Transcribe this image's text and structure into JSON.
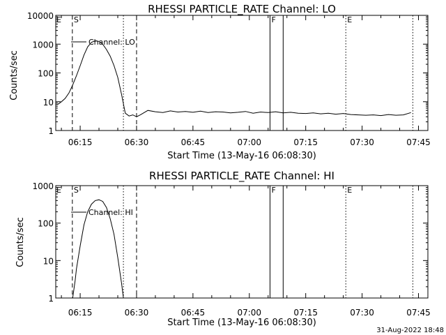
{
  "chart_data": [
    {
      "type": "line",
      "title": "RHESSI PARTICLE_RATE Channel: LO",
      "xlabel": "Start Time (13-May-16 06:08:30)",
      "ylabel": "Counts/sec",
      "y_scale": "log",
      "ylim": [
        1,
        10000
      ],
      "y_ticks": [
        "1",
        "10",
        "100",
        "1000",
        "10000"
      ],
      "xlim": [
        "06:08:30",
        "07:47:30"
      ],
      "x_ticks": [
        "06:15",
        "06:30",
        "06:45",
        "07:00",
        "07:15",
        "07:30",
        "07:45"
      ],
      "legend": {
        "position": "top-left",
        "entries": [
          "Channel: LO"
        ]
      },
      "series": [
        {
          "name": "Channel: LO",
          "x": [
            "06:09",
            "06:10",
            "06:11",
            "06:12",
            "06:13",
            "06:14",
            "06:15",
            "06:16",
            "06:17",
            "06:18",
            "06:19",
            "06:20",
            "06:21",
            "06:22",
            "06:23",
            "06:24",
            "06:25",
            "06:26",
            "06:27",
            "06:28",
            "06:29",
            "06:30",
            "06:31",
            "06:33",
            "06:35",
            "06:37",
            "06:39",
            "06:41",
            "06:43",
            "06:45",
            "06:47",
            "06:49",
            "06:51",
            "06:53",
            "06:55",
            "06:57",
            "06:59",
            "07:01",
            "07:03",
            "07:05",
            "07:07",
            "07:09",
            "07:11",
            "07:13",
            "07:15",
            "07:17",
            "07:19",
            "07:21",
            "07:23",
            "07:25",
            "07:27",
            "07:29",
            "07:31",
            "07:33",
            "07:35",
            "07:37",
            "07:39",
            "07:41",
            "07:43"
          ],
          "y": [
            8,
            10,
            13,
            20,
            38,
            80,
            180,
            420,
            800,
            1150,
            1300,
            1250,
            1000,
            650,
            380,
            180,
            70,
            18,
            4,
            3.2,
            3.5,
            3,
            3.5,
            5,
            4.5,
            4.2,
            4.8,
            4.4,
            4.6,
            4.3,
            4.7,
            4.2,
            4.5,
            4.4,
            4.1,
            4.3,
            4.6,
            4,
            4.4,
            4.2,
            4.5,
            4.1,
            4.3,
            4,
            3.9,
            4.1,
            3.8,
            4,
            3.7,
            3.9,
            3.6,
            3.5,
            3.4,
            3.5,
            3.3,
            3.6,
            3.4,
            3.5,
            4.2
          ]
        }
      ],
      "vertical_markers": [
        {
          "label": "S",
          "time": "06:12:55",
          "style": "dashed"
        },
        {
          "label": "",
          "time": "06:26:30",
          "style": "dotted"
        },
        {
          "label": "",
          "time": "06:30:00",
          "style": "dashed"
        },
        {
          "label": "F",
          "time": "07:05:30",
          "style": "solid"
        },
        {
          "label": "",
          "time": "07:09:00",
          "style": "solid"
        },
        {
          "label": "E",
          "time": "07:25:40",
          "style": "dotted"
        },
        {
          "label": "",
          "time": "07:43:30",
          "style": "dotted"
        }
      ],
      "corner_label": "E"
    },
    {
      "type": "line",
      "title": "RHESSI PARTICLE_RATE Channel: HI",
      "xlabel": "Start Time (13-May-16 06:08:30)",
      "ylabel": "Counts/sec",
      "y_scale": "log",
      "ylim": [
        1,
        1000
      ],
      "y_ticks": [
        "1",
        "10",
        "100",
        "1000"
      ],
      "xlim": [
        "06:08:30",
        "07:47:30"
      ],
      "x_ticks": [
        "06:15",
        "06:30",
        "06:45",
        "07:00",
        "07:15",
        "07:30",
        "07:45"
      ],
      "legend": {
        "position": "top-left",
        "entries": [
          "Channel: HI"
        ]
      },
      "series": [
        {
          "name": "Channel: HI",
          "x": [
            "06:13:00",
            "06:13:40",
            "06:14",
            "06:15",
            "06:16",
            "06:17",
            "06:18",
            "06:19",
            "06:20",
            "06:21",
            "06:22",
            "06:23",
            "06:24",
            "06:25",
            "06:26",
            "06:26:30"
          ],
          "y": [
            1,
            3,
            6,
            25,
            90,
            200,
            320,
            400,
            420,
            380,
            260,
            130,
            50,
            12,
            2.5,
            1
          ]
        }
      ],
      "vertical_markers": [
        {
          "label": "S",
          "time": "06:12:55",
          "style": "dashed"
        },
        {
          "label": "",
          "time": "06:26:30",
          "style": "dotted"
        },
        {
          "label": "",
          "time": "06:30:00",
          "style": "dashed"
        },
        {
          "label": "F",
          "time": "07:05:30",
          "style": "solid"
        },
        {
          "label": "",
          "time": "07:09:00",
          "style": "solid"
        },
        {
          "label": "E",
          "time": "07:25:40",
          "style": "dotted"
        },
        {
          "label": "",
          "time": "07:43:30",
          "style": "dotted"
        }
      ],
      "corner_label": "E"
    }
  ],
  "footer": {
    "timestamp": "31-Aug-2022 18:48"
  }
}
